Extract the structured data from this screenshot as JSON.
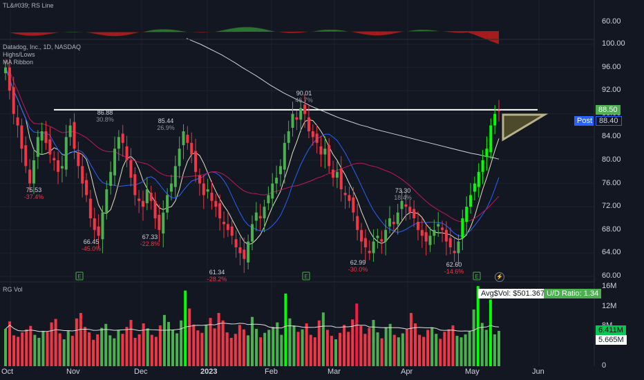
{
  "rs_legend": "TL&#039; RS Line",
  "legend_lines": [
    "Datadog, Inc., 1D, NASDAQ",
    "Highs/Lows",
    "MA Ribbon"
  ],
  "volume_title": "RG Vol",
  "price_axis": [
    "100.00",
    "96.00",
    "92.00",
    "88.00",
    "84.00",
    "80.00",
    "76.00",
    "72.00",
    "68.00",
    "64.00",
    "60.00"
  ],
  "rs_axis": "60.00",
  "volume_axis": [
    "16M",
    "12M",
    "8M",
    "0"
  ],
  "x_axis": [
    "Oct",
    "Nov",
    "Dec",
    "2023",
    "Feb",
    "Mar",
    "Apr",
    "May",
    "Jun"
  ],
  "last_price": "88.50",
  "post_label": "Post",
  "post_price": "88.40",
  "avg_vol_label": "Avg$Vol: $501.367M",
  "ud_ratio_label": "U/D Ratio: 1.34",
  "vol_tag_1": "6.411M",
  "vol_tag_2": "5.665M",
  "earnings_marker": "E",
  "colors": {
    "up": "#4caf50",
    "down": "#f23645",
    "bright_up": "#00ff00",
    "bg": "#131722",
    "sma200": "#d1d4dc",
    "ema21": "#2962ff",
    "sma50": "#c2185b",
    "post": "#2962ff"
  },
  "chart_data": {
    "type": "candlestick",
    "symbol": "Datadog, Inc.",
    "timeframe": "1D",
    "exchange": "NASDAQ",
    "ylim": [
      59,
      102
    ],
    "highs_lows": [
      {
        "label_price": "75.53",
        "label_pct": "-37.4%",
        "kind": "low",
        "date": "Oct 10"
      },
      {
        "label_price": "86.88",
        "label_pct": "30.8%",
        "kind": "high",
        "date": "Nov 15"
      },
      {
        "label_price": "66.45",
        "label_pct": "-45.0%",
        "kind": "low",
        "date": "Nov 9"
      },
      {
        "label_price": "85.44",
        "label_pct": "26.9%",
        "kind": "high",
        "date": "Dec 13"
      },
      {
        "label_price": "67.33",
        "label_pct": "-22.8%",
        "kind": "low",
        "date": "Dec 20"
      },
      {
        "label_price": "61.34",
        "label_pct": "-28.2%",
        "kind": "low",
        "date": "Jan 6"
      },
      {
        "label_price": "90.01",
        "label_pct": "46.7%",
        "kind": "high",
        "date": "Feb 16"
      },
      {
        "label_price": "62.99",
        "label_pct": "-30.0%",
        "kind": "low",
        "date": "Mar 13"
      },
      {
        "label_price": "73.30",
        "label_pct": "18.4%",
        "kind": "high",
        "date": "Apr 4"
      },
      {
        "label_price": "62.60",
        "label_pct": "-14.6%",
        "kind": "low",
        "date": "May 4"
      }
    ],
    "resistance_level": 88.7,
    "closes": [
      96,
      92,
      88,
      86,
      82,
      79,
      76,
      80,
      84,
      85,
      83,
      81,
      80,
      78,
      79,
      84,
      86,
      82,
      79,
      76,
      74,
      70,
      68,
      67,
      71,
      75,
      78,
      82,
      84,
      83,
      80,
      77,
      74,
      73,
      72,
      75,
      73,
      70,
      68,
      71,
      74,
      76,
      79,
      82,
      85,
      83,
      81,
      78,
      76,
      74,
      75,
      73,
      72,
      70,
      69,
      68,
      67,
      65,
      64,
      63,
      66,
      69,
      71,
      70,
      72,
      74,
      76,
      77,
      79,
      83,
      85,
      88,
      87,
      89,
      88,
      85,
      84,
      83,
      81,
      82,
      79,
      77,
      78,
      75,
      74,
      73,
      71,
      68,
      66,
      65,
      64,
      66,
      67,
      66,
      68,
      70,
      69,
      71,
      73,
      72,
      71,
      70,
      68,
      67,
      66,
      67,
      68,
      69,
      68,
      66,
      65,
      64,
      66,
      70,
      72,
      74,
      76,
      78,
      80,
      82,
      86,
      88,
      88.5
    ],
    "sma200": [
      101,
      100.5,
      100,
      99.4,
      98.8,
      98.2,
      97.5,
      96.8,
      96,
      95.3,
      94.6,
      93.8,
      93,
      92.3,
      91.6,
      91,
      90.4,
      89.9,
      89.3,
      88.8,
      88.3,
      87.8,
      87.3,
      86.9,
      86.5,
      86.1,
      85.8,
      85.4,
      85.1,
      84.8,
      84.5,
      84.2,
      83.9,
      83.6,
      83.3,
      83,
      82.7,
      82.4,
      82.1,
      81.8,
      81.5,
      81.2,
      81,
      80.7,
      80.5,
      80.2
    ],
    "volume_m": [
      7.5,
      9,
      6.2,
      5.9,
      6.8,
      7.4,
      8.1,
      6.3,
      5.7,
      7.1,
      6.9,
      8.8,
      9.5,
      6.6,
      5.4,
      7.2,
      6.1,
      9.6,
      10.7,
      7.9,
      6.8,
      5.3,
      6.4,
      7.7,
      8.5,
      6.2,
      5.6,
      7.3,
      6.5,
      7.9,
      9.3,
      5.7,
      6.4,
      8.6,
      7.6,
      6.3,
      5.9,
      8.2,
      10.3,
      8.9,
      7.3,
      6.6,
      9.2,
      15.2,
      11.6,
      8.4,
      7.2,
      6.7,
      8.3,
      9.7,
      7.6,
      10.7,
      9.2,
      6.8,
      5.7,
      6.5,
      8.3,
      7.4,
      6.2,
      9.9,
      7.5,
      5.8,
      6.7,
      7.3,
      7.9,
      8.8,
      6.3,
      14.6,
      9.6,
      8.2,
      6.9,
      7.4,
      8.6,
      6.3,
      5.8,
      9.2,
      10.8,
      7.3,
      6.1,
      5.4,
      6.7,
      8.3,
      6.9,
      9.4,
      12.6,
      8.1,
      6.5,
      7.7,
      9.3,
      6.8,
      5.6,
      7.8,
      8.5,
      6.3,
      5.8,
      6.6,
      7.4,
      10.7,
      8.6,
      6.3,
      5.9,
      7.3,
      7.8,
      6.5,
      5.5,
      6.9,
      7.4,
      8.2,
      6.1,
      5.8,
      6.4,
      7.1,
      11.4,
      16.1,
      8.7,
      7.3,
      13.4,
      6.4,
      7.1
    ]
  }
}
